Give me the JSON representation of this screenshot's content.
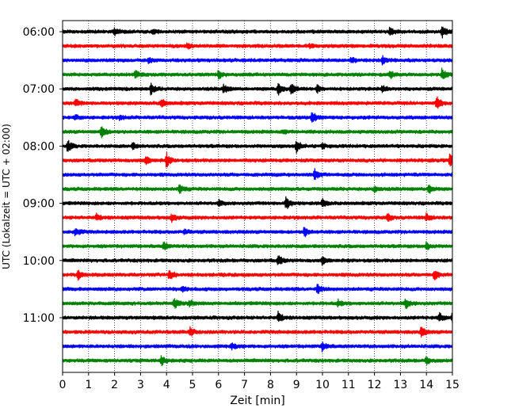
{
  "chart_data": {
    "type": "line",
    "title": "",
    "xlabel": "Zeit  [min]",
    "ylabel": "UTC (Lokalzeit = UTC + 02:00)",
    "xlim": [
      0,
      15
    ],
    "x_ticks": [
      0,
      1,
      2,
      3,
      4,
      5,
      6,
      7,
      8,
      9,
      10,
      11,
      12,
      13,
      14,
      15
    ],
    "x_grid": "dotted vertical lines at each minute",
    "trace_interval_min": 15,
    "start_time": "06:00",
    "y_tick_labels": [
      "06:00",
      "07:00",
      "08:00",
      "09:00",
      "10:00",
      "11:00"
    ],
    "colors_cycle": [
      "#000000",
      "#ff0000",
      "#0000ff",
      "#008000"
    ],
    "traces": [
      {
        "start": "06:00",
        "color": "#000000",
        "events": [
          {
            "t": 2.0,
            "a": 0.5
          },
          {
            "t": 3.5,
            "a": 0.3
          },
          {
            "t": 12.6,
            "a": 0.6
          },
          {
            "t": 14.6,
            "a": 0.9
          }
        ]
      },
      {
        "start": "06:15",
        "color": "#ff0000",
        "events": [
          {
            "t": 4.8,
            "a": 0.3
          },
          {
            "t": 9.5,
            "a": 0.2
          }
        ]
      },
      {
        "start": "06:30",
        "color": "#0000ff",
        "events": [
          {
            "t": 3.3,
            "a": 0.3
          },
          {
            "t": 11.1,
            "a": 0.4
          },
          {
            "t": 12.3,
            "a": 0.5
          }
        ]
      },
      {
        "start": "06:45",
        "color": "#008000",
        "events": [
          {
            "t": 2.8,
            "a": 0.6
          },
          {
            "t": 6.0,
            "a": 0.5
          },
          {
            "t": 12.6,
            "a": 0.5
          },
          {
            "t": 14.6,
            "a": 0.8
          }
        ]
      },
      {
        "start": "07:00",
        "color": "#000000",
        "events": [
          {
            "t": 3.4,
            "a": 0.8
          },
          {
            "t": 6.2,
            "a": 0.6
          },
          {
            "t": 8.3,
            "a": 0.7
          },
          {
            "t": 8.8,
            "a": 0.7
          },
          {
            "t": 9.8,
            "a": 0.5
          },
          {
            "t": 12.3,
            "a": 0.5
          }
        ]
      },
      {
        "start": "07:15",
        "color": "#ff0000",
        "events": [
          {
            "t": 0.5,
            "a": 0.5
          },
          {
            "t": 3.8,
            "a": 0.6
          },
          {
            "t": 14.4,
            "a": 0.9
          }
        ]
      },
      {
        "start": "07:30",
        "color": "#0000ff",
        "events": [
          {
            "t": 0.5,
            "a": 0.3
          },
          {
            "t": 2.2,
            "a": 0.3
          },
          {
            "t": 9.6,
            "a": 0.8
          }
        ]
      },
      {
        "start": "07:45",
        "color": "#008000",
        "events": [
          {
            "t": 1.5,
            "a": 0.9
          },
          {
            "t": 8.5,
            "a": 0.3
          }
        ]
      },
      {
        "start": "08:00",
        "color": "#000000",
        "events": [
          {
            "t": 0.2,
            "a": 0.8
          },
          {
            "t": 2.7,
            "a": 0.4
          },
          {
            "t": 9.0,
            "a": 0.9
          },
          {
            "t": 10.0,
            "a": 0.3
          }
        ]
      },
      {
        "start": "08:15",
        "color": "#ff0000",
        "events": [
          {
            "t": 3.2,
            "a": 0.6
          },
          {
            "t": 4.0,
            "a": 0.9
          },
          {
            "t": 14.9,
            "a": 0.9
          }
        ]
      },
      {
        "start": "08:30",
        "color": "#0000ff",
        "events": [
          {
            "t": 9.7,
            "a": 0.7
          }
        ]
      },
      {
        "start": "08:45",
        "color": "#008000",
        "events": [
          {
            "t": 4.5,
            "a": 0.7
          },
          {
            "t": 12.0,
            "a": 0.4
          },
          {
            "t": 14.1,
            "a": 0.7
          }
        ]
      },
      {
        "start": "09:00",
        "color": "#000000",
        "events": [
          {
            "t": 6.0,
            "a": 0.4
          },
          {
            "t": 8.6,
            "a": 0.9
          },
          {
            "t": 10.0,
            "a": 0.6
          }
        ]
      },
      {
        "start": "09:15",
        "color": "#ff0000",
        "events": [
          {
            "t": 1.3,
            "a": 0.4
          },
          {
            "t": 4.2,
            "a": 0.5
          },
          {
            "t": 12.5,
            "a": 0.5
          },
          {
            "t": 14.0,
            "a": 0.5
          }
        ]
      },
      {
        "start": "09:30",
        "color": "#0000ff",
        "events": [
          {
            "t": 0.5,
            "a": 0.6
          },
          {
            "t": 4.7,
            "a": 0.3
          },
          {
            "t": 9.3,
            "a": 0.7
          }
        ]
      },
      {
        "start": "09:45",
        "color": "#008000",
        "events": [
          {
            "t": 3.9,
            "a": 0.5
          },
          {
            "t": 14.0,
            "a": 0.5
          }
        ]
      },
      {
        "start": "10:00",
        "color": "#000000",
        "events": [
          {
            "t": 8.3,
            "a": 0.7
          },
          {
            "t": 10.0,
            "a": 0.5
          }
        ]
      },
      {
        "start": "10:15",
        "color": "#ff0000",
        "events": [
          {
            "t": 0.6,
            "a": 0.6
          },
          {
            "t": 4.1,
            "a": 0.7
          },
          {
            "t": 14.3,
            "a": 0.7
          }
        ]
      },
      {
        "start": "10:30",
        "color": "#0000ff",
        "events": [
          {
            "t": 4.6,
            "a": 0.3
          },
          {
            "t": 9.8,
            "a": 0.7
          }
        ]
      },
      {
        "start": "10:45",
        "color": "#008000",
        "events": [
          {
            "t": 4.3,
            "a": 0.7
          },
          {
            "t": 4.9,
            "a": 0.4
          },
          {
            "t": 10.6,
            "a": 0.4
          },
          {
            "t": 13.2,
            "a": 0.7
          }
        ]
      },
      {
        "start": "11:00",
        "color": "#000000",
        "events": [
          {
            "t": 8.3,
            "a": 0.7
          },
          {
            "t": 14.5,
            "a": 0.6
          },
          {
            "t": 15.0,
            "a": 0.7
          }
        ]
      },
      {
        "start": "11:15",
        "color": "#ff0000",
        "events": [
          {
            "t": 4.9,
            "a": 0.6
          },
          {
            "t": 13.8,
            "a": 0.7
          }
        ]
      },
      {
        "start": "11:30",
        "color": "#0000ff",
        "events": [
          {
            "t": 6.5,
            "a": 0.4
          },
          {
            "t": 10.0,
            "a": 0.6
          }
        ]
      },
      {
        "start": "11:45",
        "color": "#008000",
        "events": [
          {
            "t": 3.8,
            "a": 0.7
          },
          {
            "t": 14.0,
            "a": 0.5
          }
        ]
      }
    ]
  }
}
